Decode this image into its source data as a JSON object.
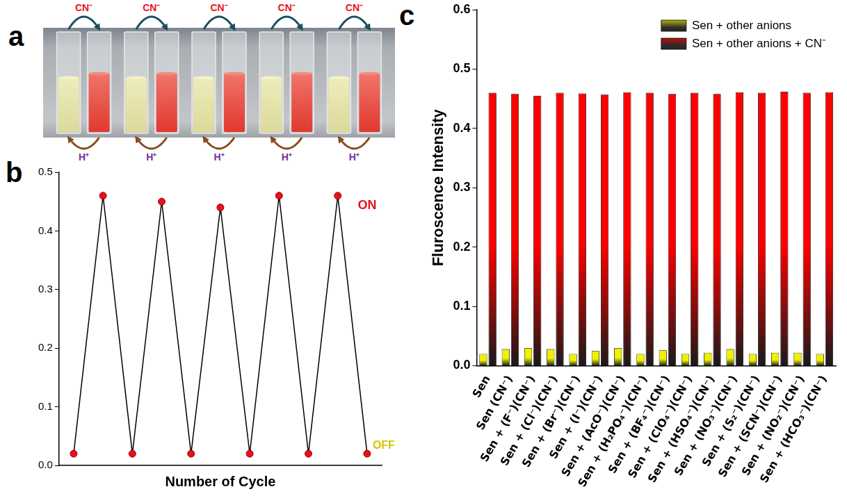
{
  "panel_a": {
    "panel_label": "a",
    "top_labels": [
      "CN⁻",
      "CN⁻",
      "CN⁻",
      "CN⁻",
      "CN⁻"
    ],
    "bottom_labels": [
      "H⁺",
      "H⁺",
      "H⁺",
      "H⁺",
      "H⁺"
    ]
  },
  "chart_data": [
    {
      "panel_label": "b",
      "type": "line",
      "x_label": "Number of Cycle",
      "categories": [
        null,
        null,
        null,
        null,
        null,
        null,
        null,
        null,
        null,
        null,
        null
      ],
      "values": [
        0.02,
        0.46,
        0.02,
        0.45,
        0.02,
        0.44,
        0.02,
        0.46,
        0.02,
        0.46,
        0.02
      ],
      "color": "#e8101a",
      "marker": "circle",
      "ylim": [
        0,
        0.5
      ],
      "yticks": [
        {
          "value": 0,
          "label": "0.0"
        },
        0.1,
        0.2,
        0.3,
        0.4,
        0.5
      ],
      "grid": false,
      "tick_labels": "y",
      "annotations": [
        {
          "text": "ON",
          "color": "#e8101a"
        },
        {
          "text": "OFF",
          "color": "#d6c400"
        }
      ]
    },
    {
      "panel_label": "c",
      "type": "bar",
      "y_label": "Fluroscence Intensity",
      "categories": [
        "Sen",
        "Sen (CN⁻)",
        "Sen + (F⁻)(CN⁻)",
        "Sen + (Cl⁻)(CN⁻)",
        "Sen + (Br⁻)(CN⁻)",
        "Sen + (I⁻)(CN⁻)",
        "Sen + (AcO⁻)(CN⁻)",
        "Sen + (H₂PO₄⁻)(CN⁻)",
        "Sen + (BF₄⁻)(CN⁻)",
        "Sen + (ClO₄⁻)(CN⁻)",
        "Sen + (HSO₄⁻)(CN⁻)",
        "Sen + (NO₃⁻)(CN⁻)",
        "Sen + (S₂⁻)(CN⁻)",
        "Sen + (SCN⁻)(CN⁻)",
        "Sen + (NO₂⁻)(CN⁻)",
        "Sen + (HCO₃⁻)(CN⁻)"
      ],
      "series": [
        {
          "name": "Sen + other anions",
          "color": "#f0f000",
          "values": [
            0.02,
            0.028,
            0.03,
            0.028,
            0.02,
            0.025,
            0.03,
            0.02,
            0.026,
            0.02,
            0.022,
            0.028,
            0.02,
            0.022,
            0.022,
            0.02
          ]
        },
        {
          "name": "Sen + other anions + CN⁻",
          "color": "#ff0000",
          "values": [
            0.46,
            0.458,
            0.455,
            0.46,
            0.459,
            0.457,
            0.461,
            0.46,
            0.458,
            0.46,
            0.458,
            0.461,
            0.46,
            0.462,
            0.46,
            0.461
          ]
        }
      ],
      "ylim": [
        0,
        0.6
      ],
      "yticks": [
        {
          "value": 0,
          "label": "0.0"
        },
        0.1,
        0.2,
        0.3,
        0.4,
        0.5,
        0.6
      ],
      "grid": false,
      "legend": "upper right"
    }
  ]
}
